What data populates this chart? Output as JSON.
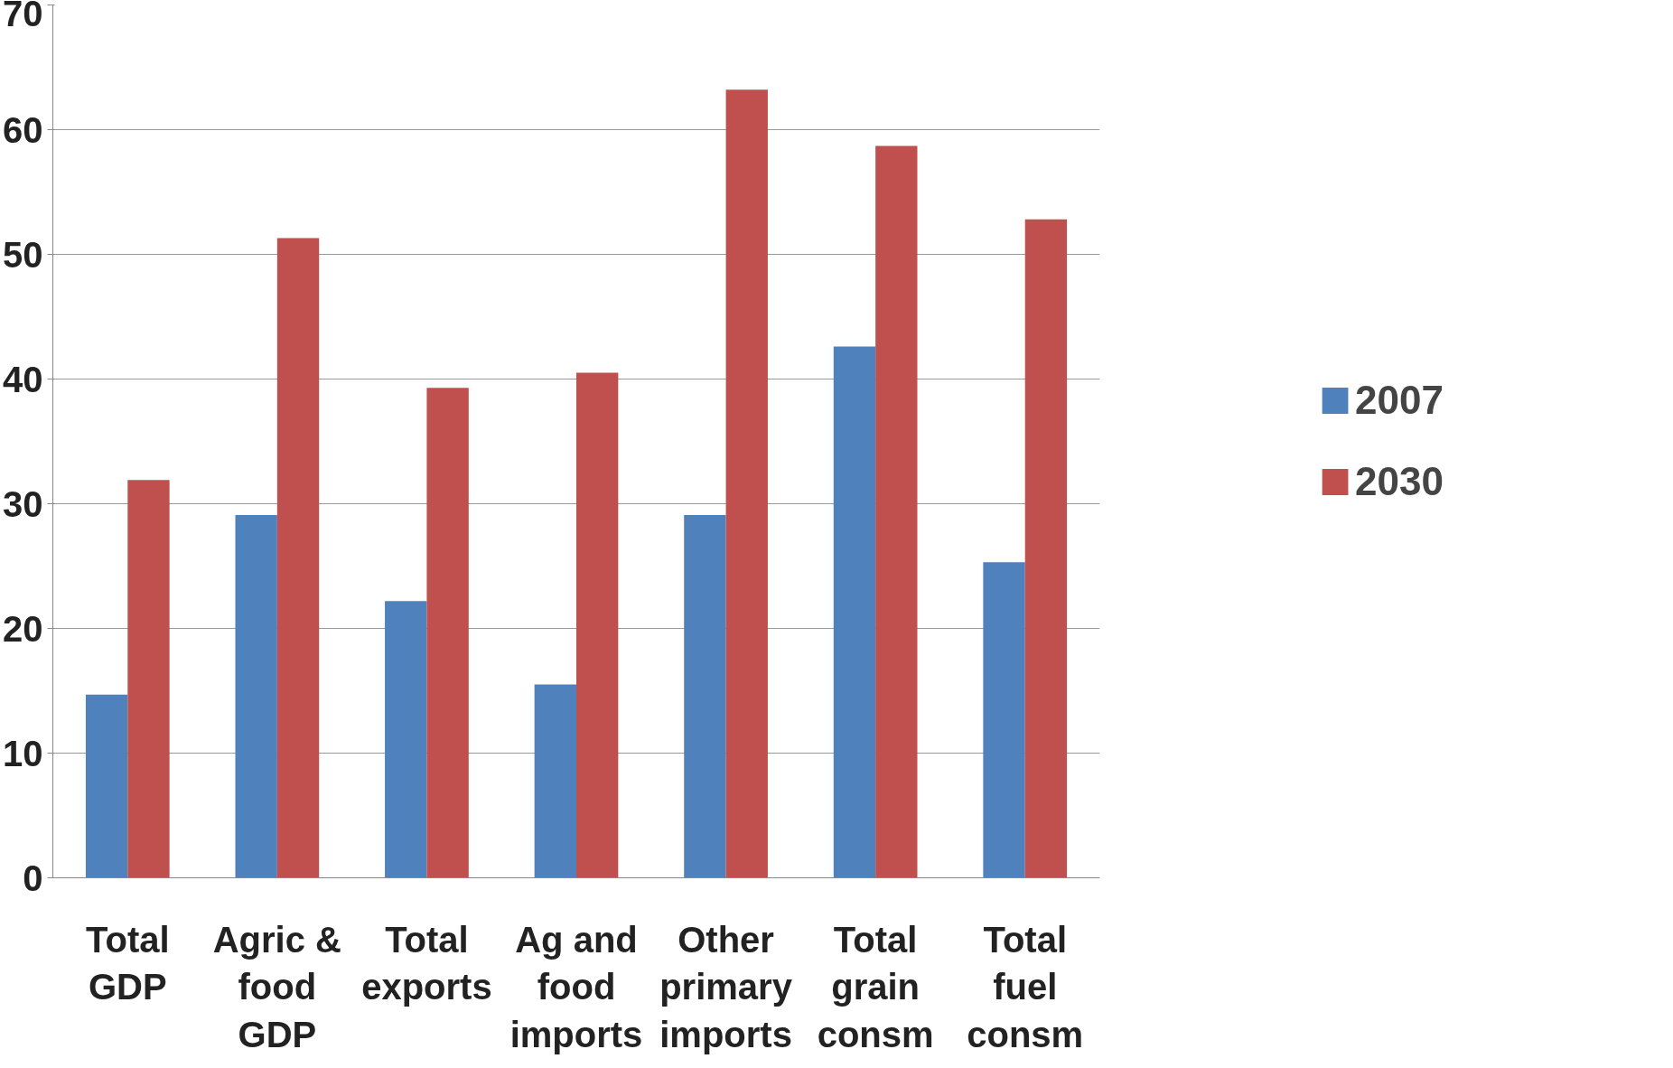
{
  "chart_data": {
    "type": "bar",
    "categories": [
      "Total GDP",
      "Agric & food GDP",
      "Total exports",
      "Ag and food imports",
      "Other primary imports",
      "Total grain consm",
      "Total fuel consm"
    ],
    "series": [
      {
        "name": "2007",
        "color": "#4f81bd",
        "values": [
          14.7,
          29.1,
          22.2,
          15.5,
          29.1,
          42.6,
          25.3
        ]
      },
      {
        "name": "2030",
        "color": "#c0504d",
        "values": [
          31.9,
          51.3,
          39.3,
          40.5,
          63.2,
          58.7,
          52.8
        ]
      }
    ],
    "ylim": [
      0,
      70
    ],
    "yticks": [
      0,
      10,
      20,
      30,
      40,
      50,
      60,
      70
    ],
    "grid": "y",
    "legend": "right"
  }
}
